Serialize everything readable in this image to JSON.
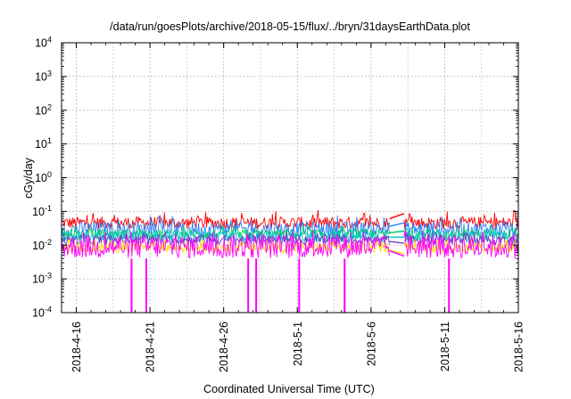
{
  "chart_data": {
    "type": "line",
    "title": "/data/run/goesPlots/archive/2018-05-15/flux/../bryn/31daysEarthData.plot",
    "xlabel": "Coordinated Universal Time (UTC)",
    "ylabel": "cGy/day",
    "yscale": "log",
    "ylim": [
      0.0001,
      10000
    ],
    "xlim": [
      "2018-04-15T00:00",
      "2018-05-16T00:00"
    ],
    "grid": true,
    "legend": "none",
    "x_ticks": [
      "2018-4-16",
      "2018-4-21",
      "2018-4-26",
      "2018-5-1",
      "2018-5-6",
      "2018-5-11",
      "2018-5-16"
    ],
    "y_ticks": [
      {
        "base": "10",
        "exp": "-4",
        "value": 0.0001
      },
      {
        "base": "10",
        "exp": "-3",
        "value": 0.001
      },
      {
        "base": "10",
        "exp": "-2",
        "value": 0.01
      },
      {
        "base": "10",
        "exp": "-1",
        "value": 0.1
      },
      {
        "base": "10",
        "exp": "0",
        "value": 1
      },
      {
        "base": "10",
        "exp": "1",
        "value": 10
      },
      {
        "base": "10",
        "exp": "2",
        "value": 100
      },
      {
        "base": "10",
        "exp": "3",
        "value": 1000
      },
      {
        "base": "10",
        "exp": "4",
        "value": 10000
      }
    ],
    "data_gap": [
      "2018-05-07T06:00",
      "2018-05-08T06:00"
    ],
    "series": [
      {
        "color": "#ff0000",
        "band": [
          0.03,
          0.07
        ],
        "spike_max": 0.11
      },
      {
        "color": "#2a7fff",
        "band": [
          0.018,
          0.05
        ],
        "spike_max": 0.08
      },
      {
        "color": "#00cc66",
        "band": [
          0.015,
          0.03
        ],
        "spike_max": 0.04
      },
      {
        "color": "#00c8c8",
        "band": [
          0.012,
          0.025
        ],
        "spike_max": 0.03
      },
      {
        "color": "#6a3fbf",
        "band": [
          0.01,
          0.02
        ],
        "spike_max": 0.025
      },
      {
        "color": "#ffd700",
        "band": [
          0.006,
          0.012
        ],
        "spike_max": 0.015
      },
      {
        "color": "#ff00ff",
        "band": [
          0.004,
          0.02
        ],
        "spike_max": 0.028,
        "dropouts": [
          "2018-04-19T18:00",
          "2018-04-20T18:00",
          "2018-04-27T16:00",
          "2018-04-28T05:00",
          "2018-05-01T03:00",
          "2018-05-04T05:00",
          "2018-05-11T07:00"
        ]
      }
    ]
  }
}
